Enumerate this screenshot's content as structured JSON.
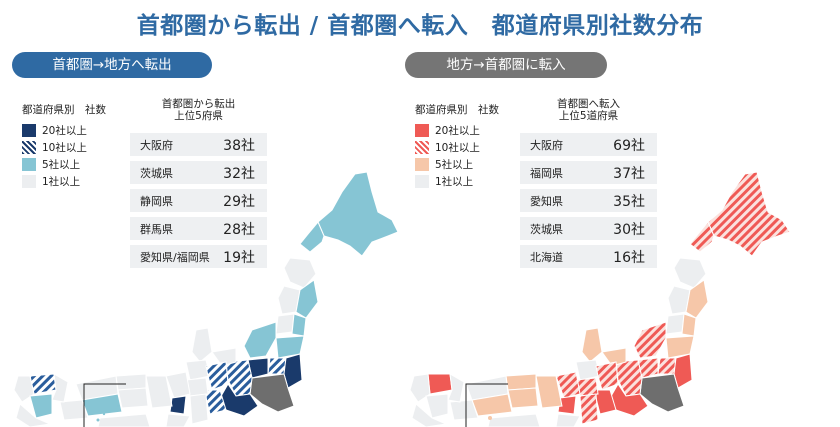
{
  "title": "首都圏から転出 / 首都圏へ転入　都道府県別社数分布",
  "left": {
    "header": "首都圏→地方へ転出",
    "header_color": "#2f6aa3",
    "legend_title": "都道府県別　社数",
    "legend": [
      {
        "label": "20社以上",
        "style": "solid",
        "color": "#1a3a6b"
      },
      {
        "label": "10社以上",
        "style": "hatch",
        "color": "#1a3a6b"
      },
      {
        "label": "5社以上",
        "style": "solid",
        "color": "#86c5d4"
      },
      {
        "label": "1社以上",
        "style": "solid",
        "color": "#eceef0"
      }
    ],
    "ranking_title_1": "首都圏から転出",
    "ranking_title_2": "上位5府県",
    "ranking": [
      {
        "pref": "大阪府",
        "count": "38社"
      },
      {
        "pref": "茨城県",
        "count": "32社"
      },
      {
        "pref": "静岡県",
        "count": "29社"
      },
      {
        "pref": "群馬県",
        "count": "28社"
      },
      {
        "pref": "愛知県/福岡県",
        "count": "19社"
      }
    ]
  },
  "right": {
    "header": "地方→首都圏に転入",
    "header_color": "#757575",
    "legend_title": "都道府県別　社数",
    "legend": [
      {
        "label": "20社以上",
        "style": "solid",
        "color": "#ef5a55"
      },
      {
        "label": "10社以上",
        "style": "hatch",
        "color": "#ef5a55"
      },
      {
        "label": "5社以上",
        "style": "solid",
        "color": "#f6c7a9"
      },
      {
        "label": "1社以上",
        "style": "solid",
        "color": "#eceef0"
      }
    ],
    "ranking_title_1": "首都圏へ転入",
    "ranking_title_2": "上位5道府県",
    "ranking": [
      {
        "pref": "大阪府",
        "count": "69社"
      },
      {
        "pref": "福岡県",
        "count": "37社"
      },
      {
        "pref": "愛知県",
        "count": "35社"
      },
      {
        "pref": "茨城県",
        "count": "30社"
      },
      {
        "pref": "北海道",
        "count": "16社"
      }
    ]
  },
  "map_regions_left": {
    "hokkaido": "5社以上",
    "tohoku_north": "1社以上",
    "tohoku_pacific": "5社以上",
    "niigata": "5社以上",
    "fukushima": "5社以上",
    "ibaraki": "20社以上",
    "gunma": "20社以上",
    "tochigi": "10社以上",
    "shizuoka": "20社以上",
    "aichi": "10社以上",
    "osaka": "20社以上",
    "fukuoka": "10社以上",
    "shutoken": "首都圏",
    "shutoken_color": "#6e6e6e"
  },
  "map_regions_right": {
    "hokkaido": "10社以上",
    "tohoku_north": "5社以上",
    "tohoku_pacific": "10社以上",
    "niigata": "10社以上",
    "ibaraki": "20社以上",
    "aichi": "20社以上",
    "osaka": "20社以上",
    "fukuoka": "20社以上",
    "kansai": "10社以上",
    "shutoken": "首都圏",
    "shutoken_color": "#6e6e6e"
  }
}
